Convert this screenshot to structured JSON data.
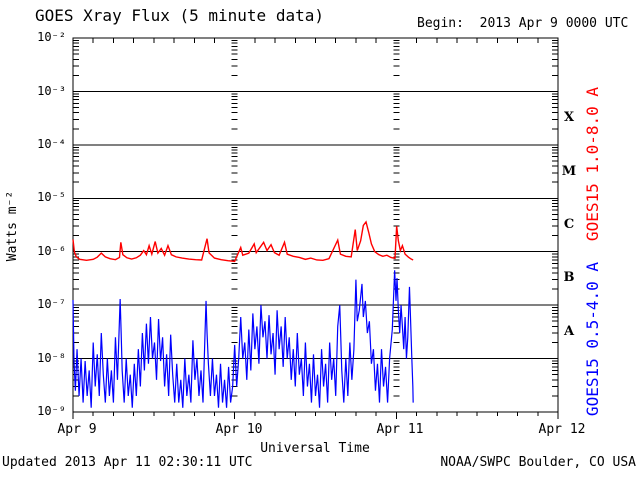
{
  "header": {
    "title": "GOES Xray Flux (5 minute data)",
    "begin_label": "Begin:  2013 Apr 9 0000 UTC"
  },
  "footer": {
    "updated": "Updated 2013 Apr 11 02:30:11 UTC",
    "source": "NOAA/SWPC Boulder, CO USA"
  },
  "axes": {
    "y_label": "Watts m⁻²",
    "x_label": "Universal Time",
    "y_ticks": [
      "10⁻²",
      "10⁻³",
      "10⁻⁴",
      "10⁻⁵",
      "10⁻⁶",
      "10⁻⁷",
      "10⁻⁸",
      "10⁻⁹"
    ],
    "x_ticks": [
      "Apr 9",
      "Apr 10",
      "Apr 11",
      "Apr 12"
    ],
    "flare_classes": [
      "X",
      "M",
      "C",
      "B",
      "A"
    ]
  },
  "legend": {
    "long_channel": {
      "label": "GOES15 1.0-8.0 A",
      "color": "#ff0000"
    },
    "short_channel": {
      "label": "GOES15 0.5-4.0 A",
      "color": "#0000ff"
    }
  },
  "chart_data": {
    "type": "line",
    "title": "GOES Xray Flux (5 minute data)",
    "xlabel": "Universal Time",
    "ylabel": "Watts m⁻²",
    "x_unit": "hours since 2013 Apr 9 0000 UTC",
    "x_range_hours": [
      0,
      72
    ],
    "x_day_ticks": [
      {
        "hour": 0,
        "label": "Apr 9"
      },
      {
        "hour": 24,
        "label": "Apr 10"
      },
      {
        "hour": 48,
        "label": "Apr 11"
      },
      {
        "hour": 72,
        "label": "Apr 12"
      }
    ],
    "x_minor_tick_hours": 3,
    "y_scale": "log",
    "y_log_range": [
      -9,
      -2
    ],
    "grid": {
      "horizontal_major": true,
      "vertical_day_dashed": true
    },
    "legend_position": "right-rotated",
    "flare_class_bands": {
      "X": [
        -4,
        -3
      ],
      "M": [
        -5,
        -4
      ],
      "C": [
        -6,
        -5
      ],
      "B": [
        -7,
        -6
      ],
      "A": [
        -8,
        -7
      ]
    },
    "series": [
      {
        "name": "GOES15 1.0-8.0 A",
        "color": "#ff0000",
        "points": [
          [
            0,
            1.7e-06
          ],
          [
            0.2,
            1e-06
          ],
          [
            0.5,
            8e-07
          ],
          [
            1.0,
            7.2e-07
          ],
          [
            2.0,
            6.9e-07
          ],
          [
            3.0,
            7.2e-07
          ],
          [
            3.6,
            7.9e-07
          ],
          [
            4.2,
            9.4e-07
          ],
          [
            4.8,
            8e-07
          ],
          [
            5.5,
            7.4e-07
          ],
          [
            6.3,
            7.1e-07
          ],
          [
            6.9,
            7.8e-07
          ],
          [
            7.1,
            1.5e-06
          ],
          [
            7.4,
            8.8e-07
          ],
          [
            8.0,
            7.7e-07
          ],
          [
            8.7,
            7.3e-07
          ],
          [
            9.4,
            7.7e-07
          ],
          [
            10.0,
            8.6e-07
          ],
          [
            10.5,
            1.05e-06
          ],
          [
            10.9,
            8.8e-07
          ],
          [
            11.3,
            1.3e-06
          ],
          [
            11.7,
            9e-07
          ],
          [
            12.2,
            1.55e-06
          ],
          [
            12.6,
            9.4e-07
          ],
          [
            13.1,
            1.15e-06
          ],
          [
            13.6,
            8.6e-07
          ],
          [
            14.1,
            1.3e-06
          ],
          [
            14.6,
            8.8e-07
          ],
          [
            15.3,
            8e-07
          ],
          [
            16.2,
            7.6e-07
          ],
          [
            17.2,
            7.3e-07
          ],
          [
            18.2,
            7.1e-07
          ],
          [
            19.1,
            7e-07
          ],
          [
            19.9,
            1.75e-06
          ],
          [
            20.2,
            9.5e-07
          ],
          [
            21.0,
            7.6e-07
          ],
          [
            22.0,
            7.1e-07
          ],
          [
            23.0,
            6.8e-07
          ],
          [
            24.0,
            6.6e-07
          ],
          [
            24.9,
            1.2e-06
          ],
          [
            25.2,
            8.6e-07
          ],
          [
            26.1,
            9.4e-07
          ],
          [
            26.9,
            1.4e-06
          ],
          [
            27.2,
            9.6e-07
          ],
          [
            28.3,
            1.5e-06
          ],
          [
            28.8,
            1.05e-06
          ],
          [
            29.4,
            1.35e-06
          ],
          [
            29.9,
            9.6e-07
          ],
          [
            30.6,
            8.6e-07
          ],
          [
            31.4,
            1.5e-06
          ],
          [
            31.8,
            9e-07
          ],
          [
            32.7,
            8.2e-07
          ],
          [
            33.6,
            7.8e-07
          ],
          [
            34.5,
            7.2e-07
          ],
          [
            35.3,
            7.6e-07
          ],
          [
            36.2,
            7e-07
          ],
          [
            37.1,
            6.9e-07
          ],
          [
            38.0,
            7.4e-07
          ],
          [
            39.3,
            1.65e-06
          ],
          [
            39.7,
            9e-07
          ],
          [
            40.5,
            8.2e-07
          ],
          [
            41.3,
            8e-07
          ],
          [
            41.9,
            2.6e-06
          ],
          [
            42.2,
            1.05e-06
          ],
          [
            42.7,
            1.6e-06
          ],
          [
            43.1,
            3.1e-06
          ],
          [
            43.5,
            3.6e-06
          ],
          [
            43.9,
            2.3e-06
          ],
          [
            44.3,
            1.4e-06
          ],
          [
            44.8,
            1e-06
          ],
          [
            45.4,
            8.8e-07
          ],
          [
            46.0,
            8.2e-07
          ],
          [
            46.6,
            8.6e-07
          ],
          [
            47.2,
            7.8e-07
          ],
          [
            47.8,
            7.5e-07
          ],
          [
            48.05,
            3e-06
          ],
          [
            48.3,
            1.6e-06
          ],
          [
            48.6,
            1.05e-06
          ],
          [
            48.9,
            1.3e-06
          ],
          [
            49.3,
            9e-07
          ],
          [
            49.8,
            7.9e-07
          ],
          [
            50.2,
            7.3e-07
          ],
          [
            50.5,
            7e-07
          ]
        ]
      },
      {
        "name": "GOES15 0.5-4.0 A",
        "color": "#0000ff",
        "points": [
          [
            0,
            1.25e-07
          ],
          [
            0.15,
            9e-09
          ],
          [
            0.35,
            2.5e-09
          ],
          [
            0.6,
            1.5e-08
          ],
          [
            0.9,
            2e-09
          ],
          [
            1.2,
            1e-08
          ],
          [
            1.5,
            1.5e-09
          ],
          [
            1.8,
            9e-09
          ],
          [
            2.1,
            2e-09
          ],
          [
            2.4,
            6e-09
          ],
          [
            2.7,
            1.2e-09
          ],
          [
            3.0,
            2e-08
          ],
          [
            3.3,
            3e-09
          ],
          [
            3.6,
            1.2e-08
          ],
          [
            3.9,
            2e-09
          ],
          [
            4.2,
            3e-08
          ],
          [
            4.5,
            5e-09
          ],
          [
            4.8,
            1.5e-09
          ],
          [
            5.1,
            1e-08
          ],
          [
            5.4,
            2e-09
          ],
          [
            5.7,
            6e-09
          ],
          [
            6.0,
            1.5e-09
          ],
          [
            6.3,
            2.5e-08
          ],
          [
            6.6,
            4e-09
          ],
          [
            7.0,
            1.3e-07
          ],
          [
            7.15,
            3e-08
          ],
          [
            7.3,
            6e-09
          ],
          [
            7.6,
            1.5e-09
          ],
          [
            7.9,
            1e-08
          ],
          [
            8.2,
            2e-09
          ],
          [
            8.5,
            5e-09
          ],
          [
            8.8,
            1.2e-09
          ],
          [
            9.1,
            8e-09
          ],
          [
            9.4,
            2e-09
          ],
          [
            9.7,
            1.5e-08
          ],
          [
            10.0,
            3e-09
          ],
          [
            10.3,
            3e-08
          ],
          [
            10.6,
            6e-09
          ],
          [
            10.9,
            4.5e-08
          ],
          [
            11.2,
            8e-09
          ],
          [
            11.5,
            6e-08
          ],
          [
            11.8,
            1e-08
          ],
          [
            12.1,
            2e-08
          ],
          [
            12.4,
            4e-09
          ],
          [
            12.7,
            5.5e-08
          ],
          [
            13.0,
            9e-09
          ],
          [
            13.3,
            2.5e-08
          ],
          [
            13.6,
            3e-09
          ],
          [
            13.9,
            1.2e-08
          ],
          [
            14.2,
            2e-09
          ],
          [
            14.5,
            2.8e-08
          ],
          [
            14.8,
            5e-09
          ],
          [
            15.1,
            1.5e-09
          ],
          [
            15.4,
            8e-09
          ],
          [
            15.7,
            1.5e-09
          ],
          [
            16.0,
            4e-09
          ],
          [
            16.3,
            1.2e-09
          ],
          [
            16.6,
            1e-08
          ],
          [
            16.9,
            2e-09
          ],
          [
            17.2,
            5e-09
          ],
          [
            17.5,
            1.5e-09
          ],
          [
            17.8,
            2.2e-08
          ],
          [
            18.1,
            4e-09
          ],
          [
            18.4,
            1e-08
          ],
          [
            18.7,
            2e-09
          ],
          [
            19.0,
            6e-09
          ],
          [
            19.3,
            1.5e-09
          ],
          [
            19.6,
            3e-08
          ],
          [
            19.75,
            1.2e-07
          ],
          [
            19.9,
            3e-08
          ],
          [
            20.1,
            8e-09
          ],
          [
            20.4,
            2e-09
          ],
          [
            20.7,
            1e-08
          ],
          [
            21.0,
            2e-09
          ],
          [
            21.3,
            5e-09
          ],
          [
            21.6,
            1.2e-09
          ],
          [
            21.9,
            8e-09
          ],
          [
            22.2,
            1.5e-09
          ],
          [
            22.5,
            4e-09
          ],
          [
            22.8,
            1.2e-09
          ],
          [
            23.1,
            7e-09
          ],
          [
            23.4,
            1.5e-09
          ],
          [
            23.7,
            3e-09
          ],
          [
            24.0,
            1.8e-08
          ],
          [
            24.3,
            3e-09
          ],
          [
            24.6,
            1e-08
          ],
          [
            24.9,
            6e-08
          ],
          [
            25.2,
            1e-08
          ],
          [
            25.5,
            2e-08
          ],
          [
            25.8,
            4e-09
          ],
          [
            26.1,
            3.5e-08
          ],
          [
            26.4,
            6e-09
          ],
          [
            26.7,
            7e-08
          ],
          [
            27.0,
            1.5e-08
          ],
          [
            27.3,
            4e-08
          ],
          [
            27.6,
            8e-09
          ],
          [
            27.9,
            1e-07
          ],
          [
            28.2,
            2.5e-08
          ],
          [
            28.5,
            5e-08
          ],
          [
            28.8,
            1e-08
          ],
          [
            29.1,
            6.5e-08
          ],
          [
            29.4,
            1.2e-08
          ],
          [
            29.7,
            3e-08
          ],
          [
            30.0,
            5e-09
          ],
          [
            30.3,
            8e-08
          ],
          [
            30.6,
            1.5e-08
          ],
          [
            30.9,
            4e-08
          ],
          [
            31.2,
            7e-09
          ],
          [
            31.5,
            6e-08
          ],
          [
            31.8,
            1e-08
          ],
          [
            32.1,
            2.5e-08
          ],
          [
            32.4,
            4e-09
          ],
          [
            32.7,
            1.5e-08
          ],
          [
            33.0,
            3e-09
          ],
          [
            33.3,
            3e-08
          ],
          [
            33.6,
            5e-09
          ],
          [
            33.9,
            1e-08
          ],
          [
            34.2,
            2e-09
          ],
          [
            34.5,
            2e-08
          ],
          [
            34.8,
            3e-09
          ],
          [
            35.1,
            8e-09
          ],
          [
            35.4,
            1.5e-09
          ],
          [
            35.7,
            1.2e-08
          ],
          [
            36.0,
            2e-09
          ],
          [
            36.3,
            5e-09
          ],
          [
            36.6,
            1.2e-09
          ],
          [
            36.9,
            1.5e-08
          ],
          [
            37.2,
            3e-09
          ],
          [
            37.5,
            8e-09
          ],
          [
            37.8,
            1.5e-09
          ],
          [
            38.1,
            2e-08
          ],
          [
            38.4,
            4e-09
          ],
          [
            38.7,
            1e-08
          ],
          [
            39.0,
            2e-09
          ],
          [
            39.3,
            4e-08
          ],
          [
            39.6,
            1e-07
          ],
          [
            39.75,
            2.5e-08
          ],
          [
            39.9,
            6e-09
          ],
          [
            40.2,
            1.5e-09
          ],
          [
            40.5,
            1e-08
          ],
          [
            40.8,
            2e-09
          ],
          [
            41.1,
            2e-08
          ],
          [
            41.4,
            4e-09
          ],
          [
            41.7,
            1.5e-08
          ],
          [
            42.0,
            3e-07
          ],
          [
            42.2,
            5e-08
          ],
          [
            42.5,
            8e-08
          ],
          [
            42.9,
            2.5e-07
          ],
          [
            43.1,
            6e-08
          ],
          [
            43.4,
            1.2e-07
          ],
          [
            43.7,
            3e-08
          ],
          [
            44.0,
            5e-08
          ],
          [
            44.3,
            8e-09
          ],
          [
            44.6,
            1.5e-08
          ],
          [
            44.9,
            2.5e-09
          ],
          [
            45.2,
            8e-09
          ],
          [
            45.5,
            1.5e-09
          ],
          [
            45.8,
            1.5e-08
          ],
          [
            46.1,
            3e-09
          ],
          [
            46.4,
            7e-09
          ],
          [
            46.7,
            1.5e-09
          ],
          [
            47.0,
            1e-08
          ],
          [
            47.4,
            3.5e-08
          ],
          [
            47.75,
            4.5e-07
          ],
          [
            47.95,
            1.2e-07
          ],
          [
            48.1,
            3.2e-07
          ],
          [
            48.3,
            8e-08
          ],
          [
            48.5,
            3e-08
          ],
          [
            48.7,
            1e-07
          ],
          [
            48.9,
            4e-08
          ],
          [
            49.1,
            1.5e-08
          ],
          [
            49.3,
            6e-08
          ],
          [
            49.5,
            1e-08
          ],
          [
            49.7,
            2.5e-08
          ],
          [
            49.95,
            2.2e-07
          ],
          [
            50.1,
            6e-08
          ],
          [
            50.3,
            1e-08
          ],
          [
            50.45,
            3e-09
          ],
          [
            50.5,
            1.5e-09
          ]
        ]
      }
    ]
  }
}
